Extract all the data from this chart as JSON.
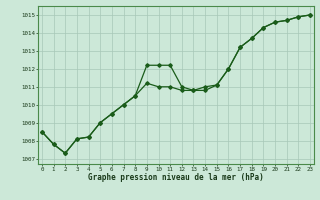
{
  "line1_x": [
    0,
    1,
    2,
    3,
    4,
    5,
    6,
    7,
    8,
    9,
    10,
    11,
    12,
    13,
    14,
    15,
    16,
    17,
    18,
    19,
    20,
    21,
    22,
    23
  ],
  "line1_y": [
    1008.5,
    1007.8,
    1007.3,
    1008.1,
    1008.2,
    1009.0,
    1009.5,
    1010.0,
    1010.5,
    1012.2,
    1012.2,
    1012.2,
    1011.0,
    1010.8,
    1010.8,
    1011.1,
    1012.0,
    1013.2,
    1013.7,
    1014.3,
    1014.6,
    1014.7,
    1014.9,
    1015.0
  ],
  "line2_x": [
    0,
    1,
    2,
    3,
    4,
    5,
    6,
    7,
    8,
    9,
    10,
    11,
    12,
    13,
    14,
    15,
    16,
    17,
    18,
    19,
    20,
    21,
    22,
    23
  ],
  "line2_y": [
    1008.5,
    1007.8,
    1007.3,
    1008.1,
    1008.2,
    1009.0,
    1009.5,
    1010.0,
    1010.5,
    1011.2,
    1011.0,
    1011.0,
    1010.8,
    1010.8,
    1011.0,
    1011.1,
    1012.0,
    1013.2,
    1013.7,
    1014.3,
    1014.6,
    1014.7,
    1014.9,
    1015.0
  ],
  "line_color": "#1a5c1a",
  "bg_color": "#cce8d8",
  "grid_color": "#a8c8b8",
  "xlabel": "Graphe pression niveau de la mer (hPa)",
  "yticks": [
    1007,
    1008,
    1009,
    1010,
    1011,
    1012,
    1013,
    1014,
    1015
  ],
  "xticks": [
    0,
    1,
    2,
    3,
    4,
    5,
    6,
    7,
    8,
    9,
    10,
    11,
    12,
    13,
    14,
    15,
    16,
    17,
    18,
    19,
    20,
    21,
    22,
    23
  ],
  "xlim": [
    -0.3,
    23.3
  ],
  "ylim": [
    1006.7,
    1015.5
  ]
}
